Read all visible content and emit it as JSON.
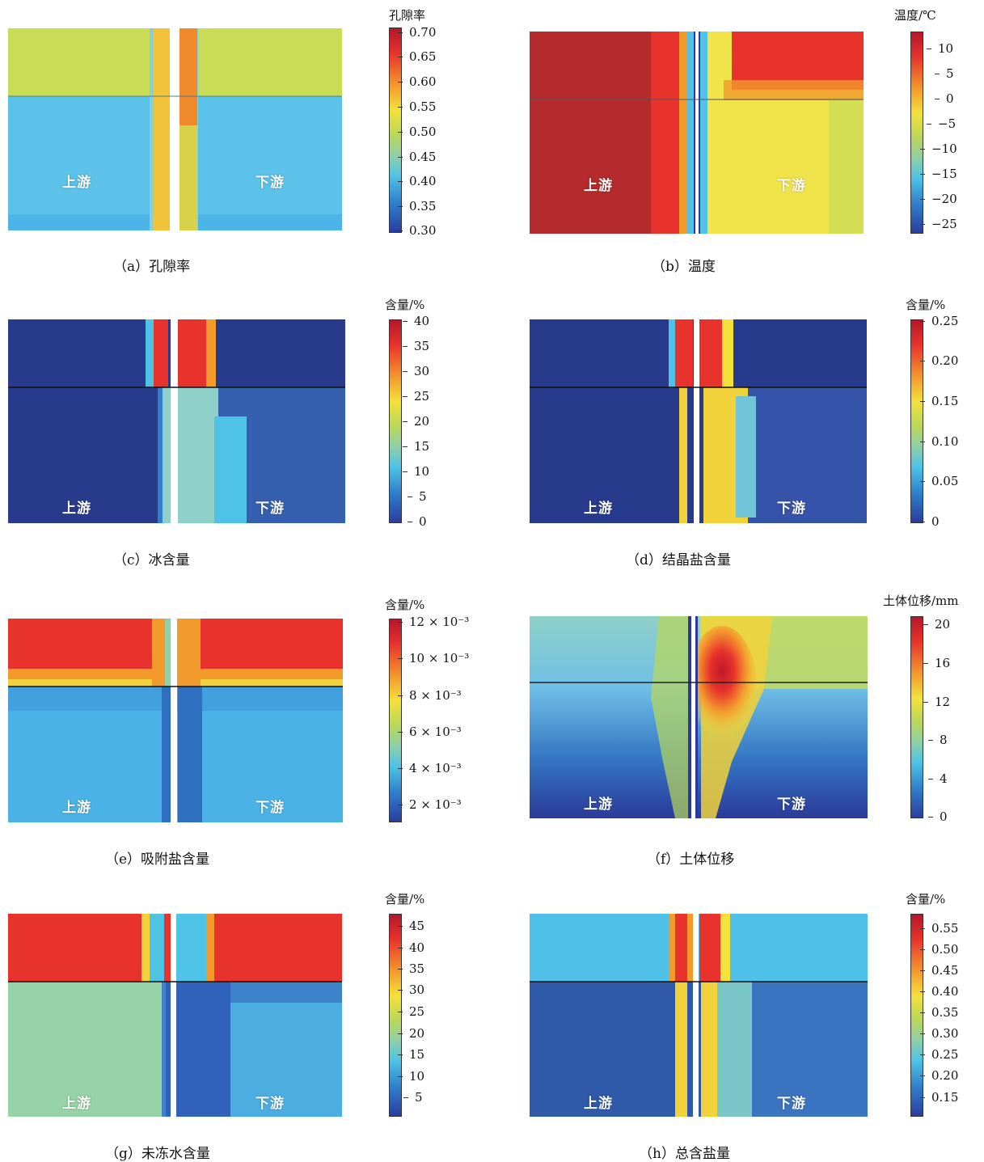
{
  "panels": [
    {
      "id": "a",
      "caption": "（a）孔隙率",
      "unit": "孔隙率",
      "ticks": [
        "0.70",
        "0.65",
        "0.60",
        "0.55",
        "0.50",
        "0.45",
        "0.40",
        "0.35",
        "0.30"
      ],
      "upstream": "上游",
      "downstream": "下游"
    },
    {
      "id": "b",
      "caption": "（b）温度",
      "unit": "温度/℃",
      "ticks": [
        "10",
        "5",
        "0",
        "−5",
        "−10",
        "−15",
        "−20",
        "−25"
      ],
      "upstream": "上游",
      "downstream": "下游"
    },
    {
      "id": "c",
      "caption": "（c）冰含量",
      "unit": "含量/%",
      "ticks": [
        "40",
        "35",
        "30",
        "25",
        "20",
        "15",
        "10",
        "5",
        "0"
      ],
      "upstream": "上游",
      "downstream": "下游"
    },
    {
      "id": "d",
      "caption": "（d）结晶盐含量",
      "unit": "含量/%",
      "ticks": [
        "0.25",
        "0.20",
        "0.15",
        "0.10",
        "0.05",
        "0"
      ],
      "upstream": "上游",
      "downstream": "下游"
    },
    {
      "id": "e",
      "caption": "（e）吸附盐含量",
      "unit": "含量/%",
      "ticks": [
        "12 × 10⁻³",
        "10 × 10⁻³",
        "8 × 10⁻³",
        "6 × 10⁻³",
        "4 × 10⁻³",
        "2 × 10⁻³"
      ],
      "upstream": "上游",
      "downstream": "下游"
    },
    {
      "id": "f",
      "caption": "（f）土体位移",
      "unit": "土体位移/mm",
      "ticks": [
        "20",
        "16",
        "12",
        "8",
        "4",
        "0"
      ],
      "upstream": "上游",
      "downstream": "下游"
    },
    {
      "id": "g",
      "caption": "（g）未冻水含量",
      "unit": "含量/%",
      "ticks": [
        "45",
        "40",
        "35",
        "30",
        "25",
        "20",
        "15",
        "10",
        "5"
      ],
      "upstream": "上游",
      "downstream": "下游"
    },
    {
      "id": "h",
      "caption": "（h）总含盐量",
      "unit": "含量/%",
      "ticks": [
        "0.55",
        "0.50",
        "0.45",
        "0.40",
        "0.35",
        "0.30",
        "0.25",
        "0.20",
        "0.15"
      ],
      "upstream": "上游",
      "downstream": "下游"
    }
  ],
  "colors": {
    "jet_red": "#b2182b",
    "jet_blue": "#2b3a9a",
    "label_white": "#ffffff"
  }
}
